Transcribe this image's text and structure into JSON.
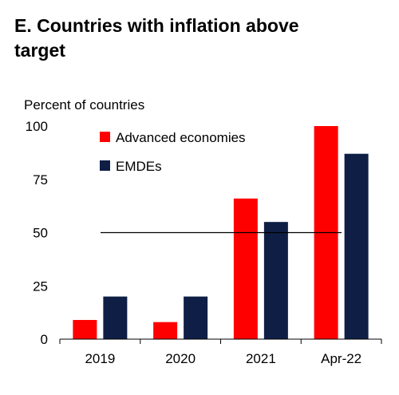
{
  "chart_data": {
    "type": "bar",
    "title_lines": [
      "E. Countries with inflation above",
      "target"
    ],
    "ylabel": "Percent of countries",
    "xlabel": "",
    "categories": [
      "2019",
      "2020",
      "2021",
      "Apr-22"
    ],
    "series": [
      {
        "name": "Advanced economies",
        "color": "#ff0000",
        "values": [
          9,
          8,
          66,
          100
        ]
      },
      {
        "name": "EMDEs",
        "color": "#0f1e45",
        "values": [
          20,
          20,
          55,
          87
        ]
      }
    ],
    "ylim": [
      0,
      100
    ],
    "yticks": [
      0,
      25,
      50,
      75,
      100
    ],
    "reference_line": {
      "value": 50,
      "color": "#000000"
    },
    "grid": false,
    "legend_position": "top-left"
  }
}
